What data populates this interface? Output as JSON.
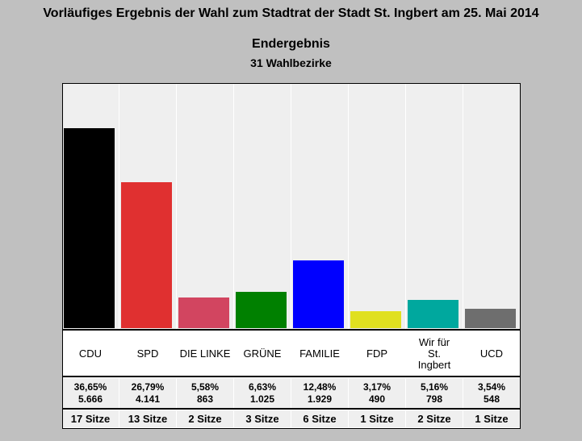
{
  "header": {
    "title": "Vorläufiges Ergebnis der Wahl zum Stadtrat der Stadt St. Ingbert am 25. Mai 2014",
    "subtitle": "Endergebnis",
    "subtitle2": "31 Wahlbezirke"
  },
  "chart_data": {
    "type": "bar",
    "ylim": [
      0,
      45
    ],
    "grid": false,
    "categories": [
      "CDU",
      "SPD",
      "DIE LINKE",
      "GRÜNE",
      "FAMILIE",
      "FDP",
      "Wir für St. Ingbert",
      "UCD"
    ],
    "series": [
      {
        "values": [
          36.65,
          26.79,
          5.58,
          6.63,
          12.48,
          3.17,
          5.16,
          3.54
        ]
      }
    ],
    "percent_labels": [
      "36,65%",
      "26,79%",
      "5,58%",
      "6,63%",
      "12,48%",
      "3,17%",
      "5,16%",
      "3,54%"
    ],
    "vote_labels": [
      "5.666",
      "4.141",
      "863",
      "1.025",
      "1.929",
      "490",
      "798",
      "548"
    ],
    "seat_labels": [
      "17 Sitze",
      "13 Sitze",
      "2 Sitze",
      "3 Sitze",
      "6 Sitze",
      "1 Sitze",
      "2 Sitze",
      "1 Sitze"
    ],
    "colors": [
      "#000000",
      "#e03030",
      "#d24560",
      "#008000",
      "#0000ff",
      "#e0e020",
      "#00a89e",
      "#6e6e6e"
    ]
  }
}
